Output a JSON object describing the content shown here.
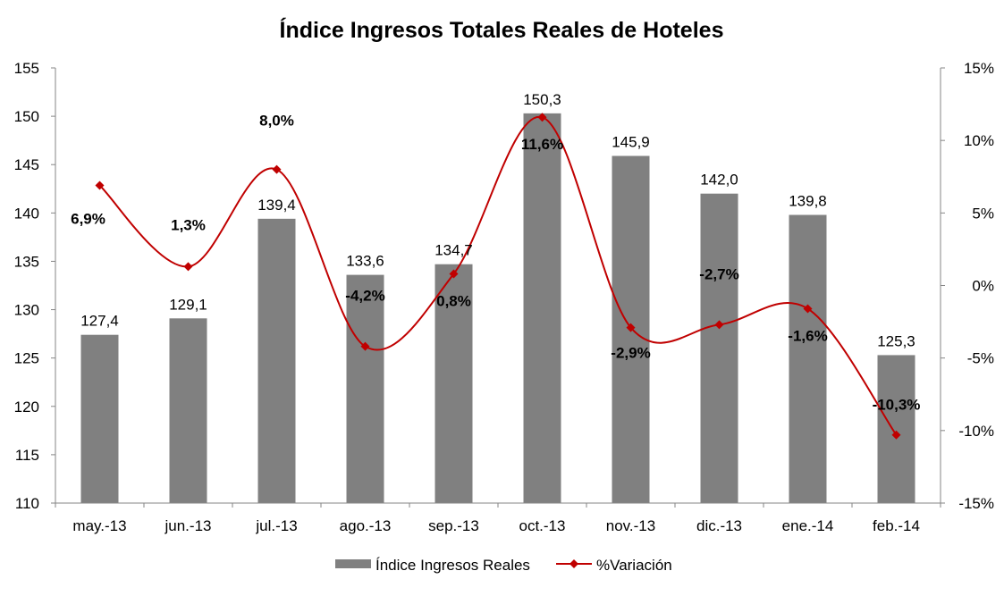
{
  "chart_data": {
    "type": "bar+line",
    "title": "Índice Ingresos Totales Reales de Hoteles",
    "categories": [
      "may.-13",
      "jun.-13",
      "jul.-13",
      "ago.-13",
      "sep.-13",
      "oct.-13",
      "nov.-13",
      "dic.-13",
      "ene.-14",
      "feb.-14"
    ],
    "series": [
      {
        "name": "Índice Ingresos Reales",
        "type": "bar",
        "axis": "left",
        "color": "#808080",
        "values": [
          127.4,
          129.1,
          139.4,
          133.6,
          134.7,
          150.3,
          145.9,
          142.0,
          139.8,
          125.3
        ],
        "labels": [
          "127,4",
          "129,1",
          "139,4",
          "133,6",
          "134,7",
          "150,3",
          "145,9",
          "142,0",
          "139,8",
          "125,3"
        ]
      },
      {
        "name": "%Variación",
        "type": "line",
        "smooth": true,
        "marker": "diamond",
        "axis": "right",
        "color": "#C00000",
        "values": [
          6.9,
          1.3,
          8.0,
          -4.2,
          0.8,
          11.6,
          -2.9,
          -2.7,
          -1.6,
          -10.3
        ],
        "labels": [
          "6,9%",
          "1,3%",
          "8,0%",
          "-4,2%",
          "0,8%",
          "11,6%",
          "-2,9%",
          "-2,7%",
          "-1,6%",
          "-10,3%"
        ]
      }
    ],
    "left_axis": {
      "ylim": [
        110,
        155
      ],
      "ticks": [
        "110",
        "115",
        "120",
        "125",
        "130",
        "135",
        "140",
        "145",
        "150",
        "155"
      ]
    },
    "right_axis": {
      "ylim": [
        -15,
        15
      ],
      "ticks": [
        "-15%",
        "-10%",
        "-5%",
        "0%",
        "5%",
        "10%",
        "15%"
      ]
    },
    "grid": false,
    "legend": "bottom"
  }
}
